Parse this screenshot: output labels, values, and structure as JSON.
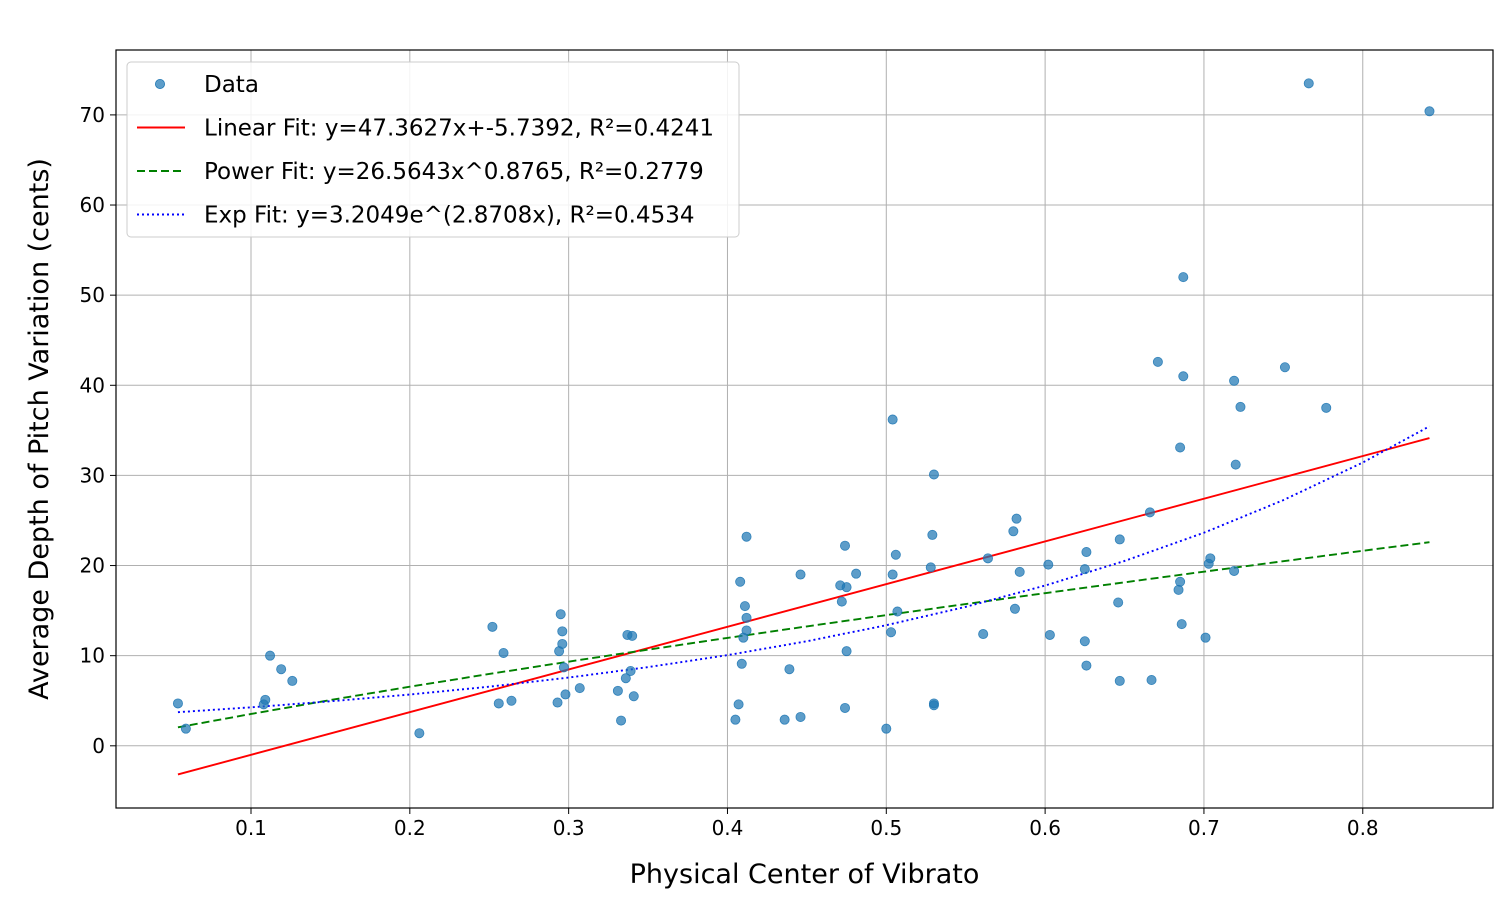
{
  "chart_data": {
    "type": "scatter",
    "xlabel": "Physical Center of Vibrato",
    "ylabel": "Average Depth of Pitch Variation (cents)",
    "xlim": [
      0.015,
      0.882
    ],
    "ylim": [
      -6.9,
      77.2
    ],
    "xticks": [
      0.1,
      0.2,
      0.3,
      0.4,
      0.5,
      0.6,
      0.7,
      0.8
    ],
    "xtick_labels": [
      "0.1",
      "0.2",
      "0.3",
      "0.4",
      "0.5",
      "0.6",
      "0.7",
      "0.8"
    ],
    "yticks": [
      0,
      10,
      20,
      30,
      40,
      50,
      60,
      70
    ],
    "ytick_labels": [
      "0",
      "10",
      "20",
      "30",
      "40",
      "50",
      "60",
      "70"
    ],
    "grid": true,
    "legend_position": "top-left",
    "legend": [
      {
        "label": "Data",
        "marker": "circle",
        "color": "#1f77b4"
      },
      {
        "label": "Linear Fit: y=47.3627x+-5.7392, R²=0.4241",
        "line": "solid",
        "color": "#ff0000"
      },
      {
        "label": "Power Fit: y=26.5643x^0.8765, R²=0.2779",
        "line": "dashed",
        "color": "#008000"
      },
      {
        "label": "Exp Fit: y=3.2049e^(2.8708x), R²=0.4534",
        "line": "dotted",
        "color": "#0000ff"
      }
    ],
    "series": [
      {
        "name": "Data",
        "kind": "scatter",
        "color": "#1f77b4",
        "points": [
          [
            0.054,
            4.7
          ],
          [
            0.059,
            1.9
          ],
          [
            0.108,
            4.6
          ],
          [
            0.109,
            5.1
          ],
          [
            0.112,
            10.0
          ],
          [
            0.119,
            8.5
          ],
          [
            0.126,
            7.2
          ],
          [
            0.206,
            1.4
          ],
          [
            0.252,
            13.2
          ],
          [
            0.256,
            4.7
          ],
          [
            0.259,
            10.3
          ],
          [
            0.264,
            5.0
          ],
          [
            0.293,
            4.8
          ],
          [
            0.294,
            10.5
          ],
          [
            0.295,
            14.6
          ],
          [
            0.296,
            11.3
          ],
          [
            0.296,
            12.7
          ],
          [
            0.297,
            8.7
          ],
          [
            0.298,
            5.7
          ],
          [
            0.307,
            6.4
          ],
          [
            0.331,
            6.1
          ],
          [
            0.333,
            2.8
          ],
          [
            0.336,
            7.5
          ],
          [
            0.337,
            12.3
          ],
          [
            0.339,
            8.3
          ],
          [
            0.34,
            12.2
          ],
          [
            0.341,
            5.5
          ],
          [
            0.405,
            2.9
          ],
          [
            0.407,
            4.6
          ],
          [
            0.408,
            18.2
          ],
          [
            0.409,
            9.1
          ],
          [
            0.41,
            12.0
          ],
          [
            0.411,
            15.5
          ],
          [
            0.412,
            23.2
          ],
          [
            0.412,
            14.2
          ],
          [
            0.412,
            12.8
          ],
          [
            0.436,
            2.9
          ],
          [
            0.439,
            8.5
          ],
          [
            0.446,
            3.2
          ],
          [
            0.446,
            19.0
          ],
          [
            0.471,
            17.8
          ],
          [
            0.472,
            16.0
          ],
          [
            0.474,
            4.2
          ],
          [
            0.474,
            22.2
          ],
          [
            0.475,
            17.6
          ],
          [
            0.475,
            10.5
          ],
          [
            0.481,
            19.1
          ],
          [
            0.5,
            1.9
          ],
          [
            0.503,
            12.6
          ],
          [
            0.504,
            36.2
          ],
          [
            0.504,
            19.0
          ],
          [
            0.506,
            21.2
          ],
          [
            0.507,
            14.9
          ],
          [
            0.528,
            19.8
          ],
          [
            0.529,
            23.4
          ],
          [
            0.53,
            4.7
          ],
          [
            0.53,
            4.5
          ],
          [
            0.53,
            30.1
          ],
          [
            0.561,
            12.4
          ],
          [
            0.564,
            20.8
          ],
          [
            0.58,
            23.8
          ],
          [
            0.581,
            15.2
          ],
          [
            0.582,
            25.2
          ],
          [
            0.584,
            19.3
          ],
          [
            0.602,
            20.1
          ],
          [
            0.603,
            12.3
          ],
          [
            0.625,
            11.6
          ],
          [
            0.625,
            19.6
          ],
          [
            0.626,
            21.5
          ],
          [
            0.626,
            8.9
          ],
          [
            0.646,
            15.9
          ],
          [
            0.647,
            7.2
          ],
          [
            0.647,
            22.9
          ],
          [
            0.666,
            25.9
          ],
          [
            0.667,
            7.3
          ],
          [
            0.671,
            42.6
          ],
          [
            0.684,
            17.3
          ],
          [
            0.685,
            18.2
          ],
          [
            0.685,
            33.1
          ],
          [
            0.686,
            13.5
          ],
          [
            0.687,
            41.0
          ],
          [
            0.687,
            52.0
          ],
          [
            0.701,
            12.0
          ],
          [
            0.703,
            20.2
          ],
          [
            0.704,
            20.8
          ],
          [
            0.719,
            19.4
          ],
          [
            0.719,
            40.5
          ],
          [
            0.72,
            31.2
          ],
          [
            0.723,
            37.6
          ],
          [
            0.751,
            42.0
          ],
          [
            0.766,
            73.5
          ],
          [
            0.777,
            37.5
          ],
          [
            0.842,
            70.4
          ]
        ]
      },
      {
        "name": "Linear Fit: y=47.3627x+-5.7392, R²=0.4241",
        "kind": "line",
        "style": "solid",
        "color": "#ff0000",
        "x": [
          0.054,
          0.842
        ],
        "y": [
          -3.18,
          34.14
        ]
      },
      {
        "name": "Power Fit: y=26.5643x^0.8765, R²=0.2779",
        "kind": "line",
        "style": "dashed",
        "color": "#008000",
        "x": [
          0.054,
          0.1,
          0.15,
          0.2,
          0.25,
          0.3,
          0.35,
          0.4,
          0.45,
          0.5,
          0.55,
          0.6,
          0.65,
          0.7,
          0.75,
          0.8,
          0.842
        ],
        "y": [
          2.05,
          3.53,
          5.08,
          6.56,
          7.97,
          9.34,
          10.67,
          11.97,
          13.25,
          14.5,
          15.73,
          16.94,
          18.14,
          19.32,
          20.48,
          21.64,
          22.59
        ]
      },
      {
        "name": "Exp Fit: y=3.2049e^(2.8708x), R²=0.4534",
        "kind": "line",
        "style": "dotted",
        "color": "#0000ff",
        "x": [
          0.054,
          0.1,
          0.15,
          0.2,
          0.25,
          0.3,
          0.35,
          0.4,
          0.45,
          0.5,
          0.55,
          0.6,
          0.65,
          0.7,
          0.75,
          0.8,
          0.842
        ],
        "y": [
          3.73,
          4.27,
          4.94,
          5.69,
          6.56,
          7.57,
          8.73,
          10.06,
          11.6,
          13.38,
          15.42,
          17.78,
          20.51,
          23.64,
          27.26,
          31.43,
          35.45
        ]
      }
    ]
  }
}
